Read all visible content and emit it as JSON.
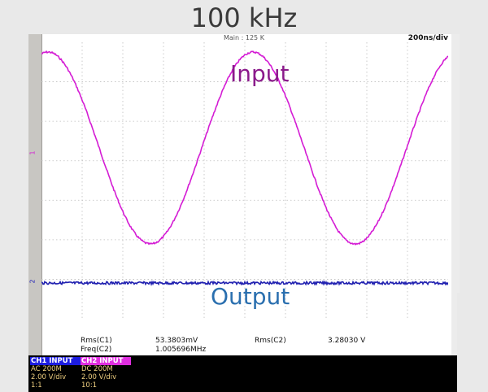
{
  "title": "100 kHz",
  "scope": {
    "timebase_label": "Main : 125 K",
    "time_per_div": "200ns/div",
    "ch1_marker": "1",
    "ch2_marker": "2"
  },
  "annotations": {
    "input": "Input",
    "output": "Output"
  },
  "measurements": {
    "rms_c1_label": "Rms(C1)",
    "rms_c1_value": "53.3803mV",
    "freq_c2_label": "Freq(C2)",
    "freq_c2_value": "1.005696MHz",
    "rms_c2_label": "Rms(C2)",
    "rms_c2_value": "3.28030 V"
  },
  "channels": [
    {
      "header": "CH1  INPUT",
      "coupling": "AC 200M",
      "scale": "2.00 V/div",
      "probe": "1:1",
      "color": "#1c1ce0"
    },
    {
      "header": "CH2  INPUT",
      "coupling": "DC 200M",
      "scale": "2.00 V/div",
      "probe": "10:1",
      "color": "#e02ee0"
    }
  ],
  "colors": {
    "input_trace": "#d41cd4",
    "output_trace": "#2020b0"
  }
}
